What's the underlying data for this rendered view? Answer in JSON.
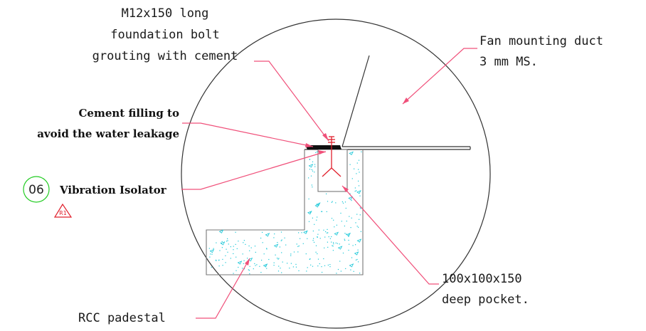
{
  "labels": {
    "bolt_line1": "M12x150 long",
    "bolt_line2": "foundation bolt",
    "bolt_line3": "grouting with cement",
    "duct_line1": "Fan mounting duct",
    "duct_line2": "3 mm MS.",
    "cement_line1": "Cement filling to",
    "cement_line2": "avoid the water leakage",
    "isolator": "Vibration Isolator",
    "pocket_line1": "100x100x150",
    "pocket_line2": "deep pocket.",
    "pedestal": "RCC padestal"
  },
  "tag": {
    "number": "06",
    "revision": "R1"
  },
  "colors": {
    "leader": "#f0507a",
    "line": "#333333",
    "concrete_hatch": "#19c7d8",
    "tag_circle": "#22cc22",
    "revision": "#e0202c",
    "bolt": "#e0202c"
  }
}
